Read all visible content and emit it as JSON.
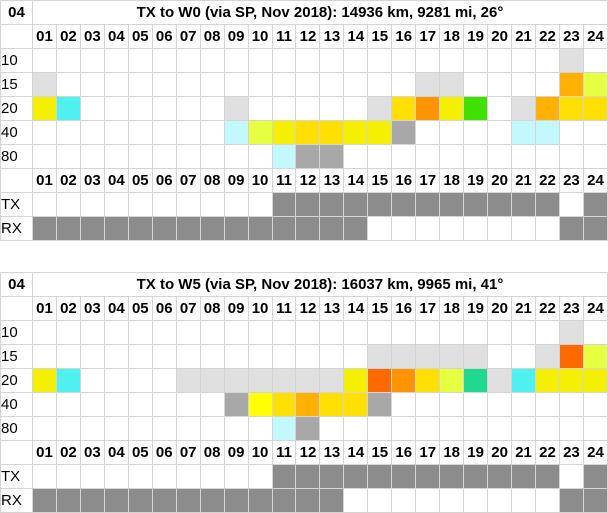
{
  "colors": {
    "W": "#ffffff",
    "L": "#e0e0e0",
    "G": "#a8a8a8",
    "D": "#8c8c8c",
    "C": "#4ff0f0",
    "c": "#c4f8ff",
    "Y": "#ffff00",
    "y": "#f5f000",
    "l": "#e6ff40",
    "Q": "#ffe000",
    "O": "#ffb000",
    "o": "#ff9400",
    "R": "#ff6a00",
    "V": "#40e000",
    "T": "#20d890"
  },
  "chart_data": [
    {
      "type": "table",
      "corner": "04",
      "title": "TX to W0 (via SP, Nov 2018): 14936 km, 9281 mi, 26°",
      "hours": [
        "01",
        "02",
        "03",
        "04",
        "05",
        "06",
        "07",
        "08",
        "09",
        "10",
        "11",
        "12",
        "13",
        "14",
        "15",
        "16",
        "17",
        "18",
        "19",
        "20",
        "21",
        "22",
        "23",
        "24"
      ],
      "rows": [
        {
          "label": "10",
          "cells": "WWWWWWWWWWWWWWWWWWWWWWLW"
        },
        {
          "label": "15",
          "cells": "LWWWWWWWWWWWWWWWLLWWWWOl"
        },
        {
          "label": "20",
          "cells": "yCWWWWWWLWWWWWLQoyVWLOQQ"
        },
        {
          "label": "40",
          "cells": "WWWWWWWWclyQQyyGWWWWccWW"
        },
        {
          "label": "80",
          "cells": "WWWWWWWWWWcGGWWWWWWWWWWW"
        }
      ],
      "tx": {
        "label": "TX",
        "cells": "WWWWWWWWWWDDDDDDDDDDDDWD"
      },
      "rx": {
        "label": "RX",
        "cells": "DDDDDDDDDDDDDDWWWWWWWWDD"
      }
    },
    {
      "type": "table",
      "corner": "04",
      "title": "TX to W5 (via SP, Nov 2018): 16037 km, 9965 mi, 41°",
      "hours": [
        "01",
        "02",
        "03",
        "04",
        "05",
        "06",
        "07",
        "08",
        "09",
        "10",
        "11",
        "12",
        "13",
        "14",
        "15",
        "16",
        "17",
        "18",
        "19",
        "20",
        "21",
        "22",
        "23",
        "24"
      ],
      "rows": [
        {
          "label": "10",
          "cells": "WWWWWWWWWWWWWWWWWWWWWWLW"
        },
        {
          "label": "15",
          "cells": "WWWWWWWWWWWWWWLLLLLWWLRl"
        },
        {
          "label": "20",
          "cells": "yCWWWWLLLLLLLyRoQlTLCyyy"
        },
        {
          "label": "40",
          "cells": "WWWWWWWWGYQOQQGWWWWWWWWW"
        },
        {
          "label": "80",
          "cells": "WWWWWWWWWWcGWWWWWWWWWWWW"
        }
      ],
      "tx": {
        "label": "TX",
        "cells": "WWWWWWWWWWDDDDDDDDDDDDWD"
      },
      "rx": {
        "label": "RX",
        "cells": "DDDDDDDDDDDDDWWWWWWWWWDD"
      }
    }
  ]
}
